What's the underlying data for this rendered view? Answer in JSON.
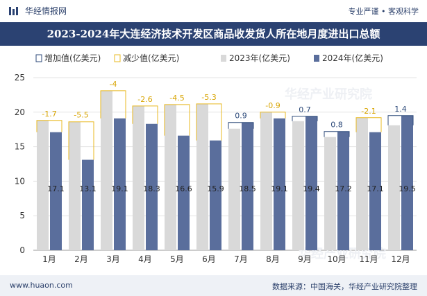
{
  "header": {
    "brand": "华经情报网",
    "slogan": "专业严谨 • 客观科学"
  },
  "title": "2023-2024年大连经济技术开发区商品收发货人所在地月度进出口总额",
  "footer": {
    "site": "www.huaon.com",
    "source": "数据来源：中国海关，华经产业研究院整理"
  },
  "watermark": "华经产业研究院",
  "colors": {
    "bar2023": "#d9d9d9",
    "bar2024": "#5a6e9c",
    "increase": "#2d4a7a",
    "decrease": "#e8b820",
    "title_bg": "#2b4272"
  },
  "chart_data": {
    "type": "bar",
    "categories": [
      "1月",
      "2月",
      "3月",
      "4月",
      "5月",
      "6月",
      "7月",
      "8月",
      "9月",
      "10月",
      "11月",
      "12月"
    ],
    "series": [
      {
        "name": "2023年(亿美元)",
        "values": [
          18.8,
          18.6,
          23.1,
          20.9,
          21.1,
          21.2,
          17.6,
          20.0,
          18.7,
          16.4,
          19.2,
          18.1
        ]
      },
      {
        "name": "2024年(亿美元)",
        "values": [
          17.1,
          13.1,
          19.1,
          18.3,
          16.6,
          15.9,
          18.5,
          19.1,
          19.4,
          17.2,
          17.1,
          19.5
        ]
      }
    ],
    "diff_labels": [
      "-1.7",
      "-5.5",
      "-4",
      "-2.6",
      "-4.5",
      "-5.3",
      "0.9",
      "-0.9",
      "0.7",
      "0.8",
      "-2.1",
      "1.4"
    ],
    "legend": [
      "增加值(亿美元)",
      "减少值(亿美元)",
      "2023年(亿美元)",
      "2024年(亿美元)"
    ],
    "y_ticks": [
      "0",
      "5",
      "10",
      "15",
      "20",
      "25"
    ],
    "ylim": [
      0,
      25
    ],
    "grid": true,
    "legend_position": "top-left"
  }
}
